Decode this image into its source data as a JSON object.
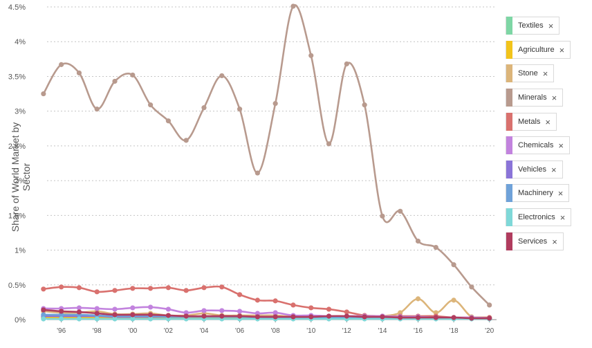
{
  "chart_data": {
    "type": "line",
    "ylabel": "Share of World Market by Sector",
    "xlabel": "",
    "x": [
      1995,
      1996,
      1997,
      1998,
      1999,
      2000,
      2001,
      2002,
      2003,
      2004,
      2005,
      2006,
      2007,
      2008,
      2009,
      2010,
      2011,
      2012,
      2013,
      2014,
      2015,
      2016,
      2017,
      2018,
      2019,
      2020
    ],
    "x_tick_labels": [
      "'96",
      "'98",
      "'00",
      "'02",
      "'04",
      "'06",
      "'08",
      "'10",
      "'12",
      "'14",
      "'16",
      "'18",
      "'20"
    ],
    "x_tick_values": [
      1996,
      1998,
      2000,
      2002,
      2004,
      2006,
      2008,
      2010,
      2012,
      2014,
      2016,
      2018,
      2020
    ],
    "ylim": [
      0,
      4.5
    ],
    "y_ticks": [
      0,
      0.5,
      1,
      1.5,
      2,
      2.5,
      3,
      3.5,
      4,
      4.5
    ],
    "y_tick_labels": [
      "0%",
      "0.5%",
      "1%",
      "1.5%",
      "2%",
      "2.5%",
      "3%",
      "3.5%",
      "4%",
      "4.5%"
    ],
    "grid": "horizontal dotted",
    "legend_position": "right",
    "series": [
      {
        "name": "Textiles",
        "color": "#7ed6a5",
        "values": [
          0.02,
          0.02,
          0.02,
          0.02,
          0.02,
          0.02,
          0.02,
          0.02,
          0.02,
          0.02,
          0.02,
          0.02,
          0.02,
          0.02,
          0.02,
          0.02,
          0.02,
          0.02,
          0.02,
          0.02,
          0.02,
          0.02,
          0.02,
          0.02,
          0.02,
          0.02
        ]
      },
      {
        "name": "Agriculture",
        "color": "#f2c41b",
        "values": [
          0.03,
          0.03,
          0.03,
          0.03,
          0.03,
          0.03,
          0.03,
          0.03,
          0.03,
          0.03,
          0.03,
          0.03,
          0.03,
          0.03,
          0.03,
          0.03,
          0.03,
          0.03,
          0.03,
          0.03,
          0.03,
          0.03,
          0.03,
          0.03,
          0.03,
          0.03
        ]
      },
      {
        "name": "Stone",
        "color": "#dcb57a",
        "values": [
          0.12,
          0.1,
          0.1,
          0.12,
          0.08,
          0.08,
          0.09,
          0.06,
          0.06,
          0.09,
          0.06,
          0.06,
          0.06,
          0.06,
          0.04,
          0.04,
          0.04,
          0.04,
          0.04,
          0.05,
          0.1,
          0.3,
          0.1,
          0.28,
          0.04,
          0.02
        ]
      },
      {
        "name": "Minerals",
        "color": "#b89a8e",
        "values": [
          3.25,
          3.67,
          3.55,
          3.03,
          3.43,
          3.52,
          3.09,
          2.86,
          2.58,
          3.05,
          3.51,
          3.03,
          2.11,
          3.11,
          4.51,
          3.8,
          2.53,
          3.68,
          3.09,
          1.49,
          1.56,
          1.13,
          1.04,
          0.79,
          0.47,
          0.21
        ]
      },
      {
        "name": "Metals",
        "color": "#d9716e",
        "values": [
          0.44,
          0.47,
          0.46,
          0.4,
          0.42,
          0.45,
          0.45,
          0.46,
          0.42,
          0.46,
          0.47,
          0.36,
          0.28,
          0.27,
          0.21,
          0.17,
          0.15,
          0.11,
          0.06,
          0.05,
          0.05,
          0.05,
          0.05,
          0.03,
          0.03,
          0.03
        ]
      },
      {
        "name": "Chemicals",
        "color": "#c283de",
        "values": [
          0.16,
          0.16,
          0.17,
          0.16,
          0.15,
          0.17,
          0.18,
          0.15,
          0.1,
          0.13,
          0.13,
          0.12,
          0.09,
          0.1,
          0.06,
          0.06,
          0.05,
          0.05,
          0.05,
          0.05,
          0.04,
          0.04,
          0.03,
          0.03,
          0.03,
          0.02
        ]
      },
      {
        "name": "Vehicles",
        "color": "#8a74d8",
        "values": [
          0.05,
          0.05,
          0.05,
          0.05,
          0.04,
          0.04,
          0.04,
          0.04,
          0.04,
          0.04,
          0.04,
          0.04,
          0.04,
          0.04,
          0.03,
          0.03,
          0.03,
          0.03,
          0.03,
          0.03,
          0.03,
          0.03,
          0.03,
          0.02,
          0.02,
          0.02
        ]
      },
      {
        "name": "Machinery",
        "color": "#6fa2d9",
        "values": [
          0.07,
          0.07,
          0.07,
          0.06,
          0.05,
          0.05,
          0.05,
          0.04,
          0.04,
          0.04,
          0.04,
          0.04,
          0.03,
          0.03,
          0.03,
          0.03,
          0.03,
          0.03,
          0.03,
          0.03,
          0.03,
          0.02,
          0.02,
          0.02,
          0.02,
          0.02
        ]
      },
      {
        "name": "Electronics",
        "color": "#7fd8d8",
        "values": [
          0.01,
          0.01,
          0.01,
          0.01,
          0.01,
          0.01,
          0.01,
          0.01,
          0.01,
          0.01,
          0.01,
          0.01,
          0.01,
          0.01,
          0.01,
          0.01,
          0.01,
          0.01,
          0.01,
          0.01,
          0.01,
          0.01,
          0.01,
          0.01,
          0.01,
          0.01
        ]
      },
      {
        "name": "Services",
        "color": "#b03c5e",
        "values": [
          0.14,
          0.12,
          0.11,
          0.09,
          0.07,
          0.07,
          0.07,
          0.06,
          0.05,
          0.05,
          0.05,
          0.05,
          0.04,
          0.04,
          0.04,
          0.04,
          0.05,
          0.05,
          0.04,
          0.04,
          0.03,
          0.03,
          0.03,
          0.03,
          0.02,
          0.02
        ]
      }
    ]
  },
  "legend": {
    "items": [
      {
        "label": "Textiles",
        "color": "#7ed6a5",
        "close": "×"
      },
      {
        "label": "Agriculture",
        "color": "#f2c41b",
        "close": "×"
      },
      {
        "label": "Stone",
        "color": "#dcb57a",
        "close": "×"
      },
      {
        "label": "Minerals",
        "color": "#b89a8e",
        "close": "×"
      },
      {
        "label": "Metals",
        "color": "#d9716e",
        "close": "×"
      },
      {
        "label": "Chemicals",
        "color": "#c283de",
        "close": "×"
      },
      {
        "label": "Vehicles",
        "color": "#8a74d8",
        "close": "×"
      },
      {
        "label": "Machinery",
        "color": "#6fa2d9",
        "close": "×"
      },
      {
        "label": "Electronics",
        "color": "#7fd8d8",
        "close": "×"
      },
      {
        "label": "Services",
        "color": "#b03c5e",
        "close": "×"
      }
    ]
  }
}
